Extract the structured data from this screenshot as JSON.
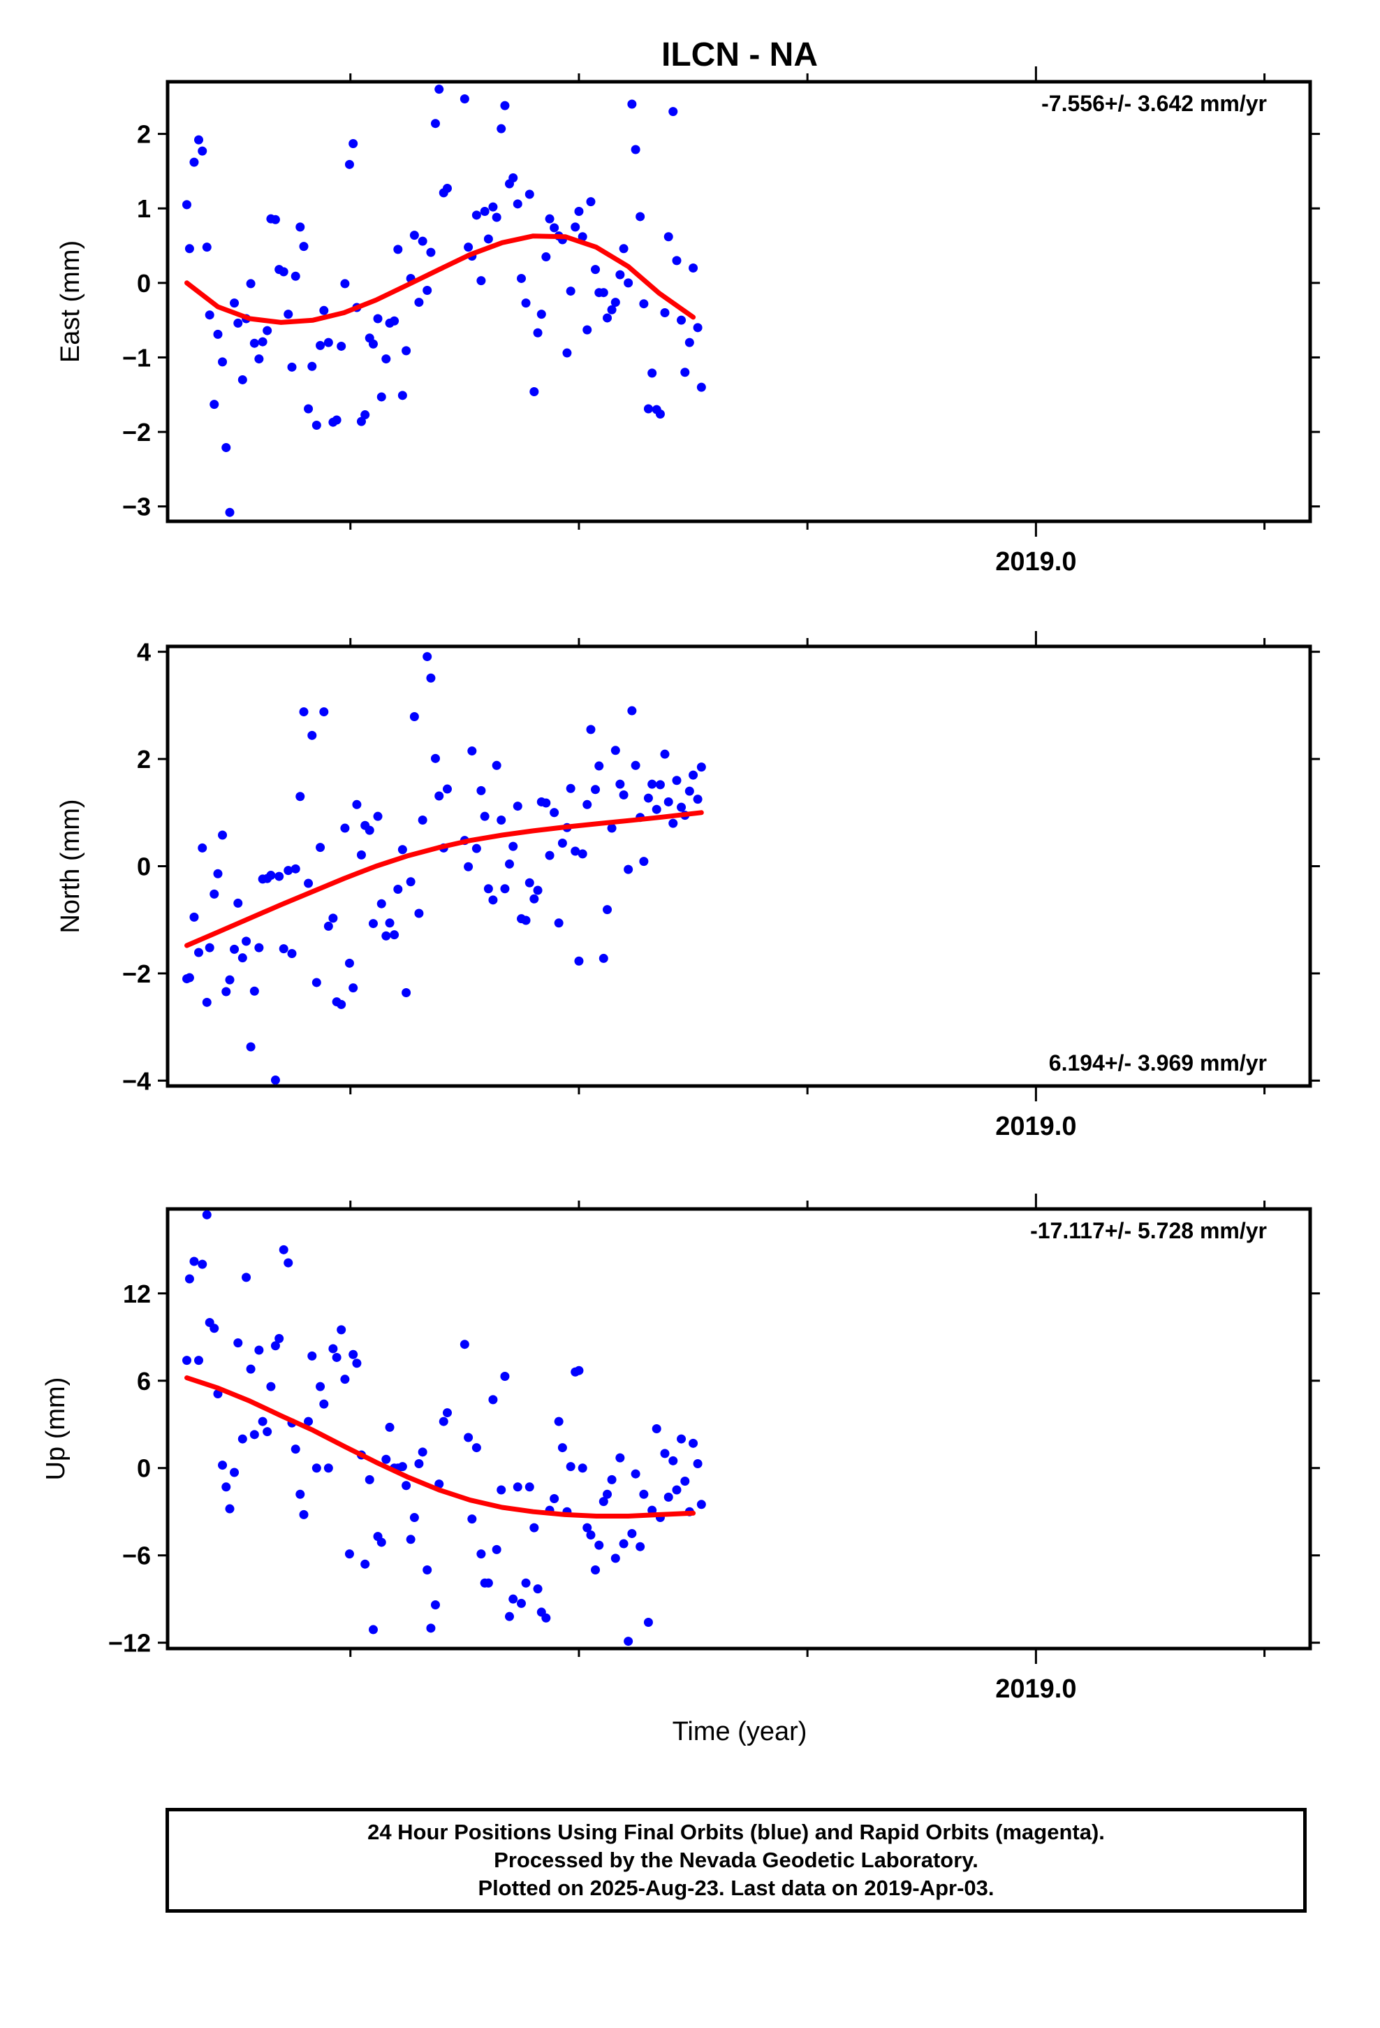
{
  "title": "ILCN - NA",
  "colors": {
    "points": "#0000ff",
    "fit": "#ff0000",
    "axis": "#000000"
  },
  "xaxis": {
    "tick_label": "2019.0",
    "label": "Time (year)",
    "range": [
      2018.05,
      2019.3
    ]
  },
  "footer": {
    "lines": [
      "24 Hour Positions Using Final Orbits (blue) and Rapid Orbits (magenta).",
      "Processed by the Nevada Geodetic Laboratory.",
      "Plotted on 2025-Aug-23. Last data on 2019-Apr-03."
    ]
  },
  "chart_data": [
    {
      "type": "scatter",
      "ylabel": "East (mm)",
      "ylim": [
        -3.2,
        2.7
      ],
      "yticks": [
        2,
        1,
        0,
        -1,
        -2,
        -3
      ],
      "yticklabels": [
        "2",
        "1",
        "0",
        "−1",
        "−2",
        "−3"
      ],
      "rate_label": "-7.556+/- 3.642 mm/yr",
      "rate_position": "top-right",
      "series": [
        {
          "x": [
            2018.071,
            2018.074,
            2018.079,
            2018.084,
            2018.088,
            2018.093,
            2018.096,
            2018.101,
            2018.105,
            2018.11,
            2018.114,
            2018.118,
            2018.123,
            2018.127,
            2018.132,
            2018.136,
            2018.141,
            2018.145,
            2018.15,
            2018.154,
            2018.159,
            2018.163,
            2018.168,
            2018.172,
            2018.177,
            2018.182,
            2018.186,
            2018.19,
            2018.195,
            2018.199,
            2018.204,
            2018.208,
            2018.213,
            2018.217,
            2018.221,
            2018.226,
            2018.231,
            2018.235,
            2018.24,
            2018.244,
            2018.249,
            2018.253,
            2018.257,
            2018.262,
            2018.266,
            2018.271,
            2018.275,
            2018.28,
            2018.284,
            2018.289,
            2018.293,
            2018.298,
            2018.302,
            2018.307,
            2018.311,
            2018.316,
            2018.32,
            2018.325,
            2018.329,
            2018.334,
            2018.338,
            2018.343,
            2018.347,
            2018.352,
            2018.356,
            2018.375,
            2018.379,
            2018.383,
            2018.388,
            2018.393,
            2018.397,
            2018.401,
            2018.406,
            2018.41,
            2018.415,
            2018.419,
            2018.424,
            2018.428,
            2018.433,
            2018.437,
            2018.442,
            2018.446,
            2018.451,
            2018.455,
            2018.459,
            2018.464,
            2018.468,
            2018.473,
            2018.478,
            2018.482,
            2018.487,
            2018.491,
            2018.496,
            2018.5,
            2018.504,
            2018.509,
            2018.513,
            2018.518,
            2018.522,
            2018.527,
            2018.531,
            2018.536,
            2018.54,
            2018.545,
            2018.549,
            2018.554,
            2018.558,
            2018.562,
            2018.567,
            2018.571,
            2018.576,
            2018.58,
            2018.585,
            2018.589,
            2018.594,
            2018.598,
            2018.603,
            2018.607,
            2018.612,
            2018.616,
            2018.621,
            2018.625,
            2018.63,
            2018.634
          ],
          "y": [
            1.05,
            0.46,
            1.62,
            1.92,
            1.77,
            0.48,
            -0.43,
            -1.63,
            -0.69,
            -1.06,
            -2.21,
            -3.08,
            -0.27,
            -0.54,
            -1.3,
            -0.48,
            -0.01,
            -0.81,
            -1.02,
            -0.79,
            -0.64,
            0.86,
            0.85,
            0.18,
            0.15,
            -0.42,
            -1.13,
            0.09,
            0.75,
            0.49,
            -1.69,
            -1.12,
            -1.91,
            -0.84,
            -0.37,
            -0.8,
            -1.87,
            -1.84,
            -0.85,
            -0.01,
            1.59,
            1.87,
            -0.33,
            -1.86,
            -1.77,
            -0.74,
            -0.82,
            -0.48,
            -1.53,
            -1.02,
            -0.54,
            -0.51,
            0.45,
            -1.51,
            -0.91,
            0.06,
            0.64,
            -0.26,
            0.56,
            -0.1,
            0.41,
            2.14,
            2.6,
            1.21,
            1.27,
            2.47,
            0.48,
            0.36,
            0.91,
            0.03,
            0.96,
            0.59,
            1.02,
            0.88,
            2.07,
            2.38,
            1.33,
            1.41,
            1.06,
            0.06,
            -0.27,
            1.19,
            -1.46,
            -0.67,
            -0.42,
            0.35,
            0.86,
            0.74,
            0.63,
            0.58,
            -0.94,
            -0.11,
            0.75,
            0.96,
            0.62,
            -0.63,
            1.09,
            0.18,
            -0.13,
            -0.13,
            -0.47,
            -0.36,
            -0.26,
            0.11,
            0.46,
            0.0,
            2.4,
            1.79,
            0.89,
            -0.28,
            -1.69,
            -1.21,
            -1.7,
            -1.76,
            -0.4,
            0.62,
            2.3,
            0.3,
            -0.5,
            -1.2,
            -0.8,
            0.2,
            -0.6,
            -1.4
          ],
          "n_points": 124
        },
        {
          "name": "fit",
          "x": [
            2018.071,
            2018.105,
            2018.14,
            2018.174,
            2018.209,
            2018.243,
            2018.278,
            2018.312,
            2018.347,
            2018.381,
            2018.416,
            2018.45,
            2018.485,
            2018.519,
            2018.554,
            2018.588,
            2018.625
          ],
          "y": [
            0.0,
            -0.32,
            -0.48,
            -0.53,
            -0.5,
            -0.4,
            -0.23,
            -0.03,
            0.18,
            0.38,
            0.54,
            0.63,
            0.62,
            0.48,
            0.22,
            -0.14,
            -0.46
          ]
        }
      ]
    },
    {
      "type": "scatter",
      "ylabel": "North (mm)",
      "ylim": [
        -4.1,
        4.1
      ],
      "yticks": [
        4,
        2,
        0,
        -2,
        -4
      ],
      "yticklabels": [
        "4",
        "2",
        "0",
        "−2",
        "−4"
      ],
      "rate_label": "6.194+/- 3.969 mm/yr",
      "rate_position": "bottom-right",
      "series": [
        {
          "x": [
            2018.071,
            2018.074,
            2018.079,
            2018.084,
            2018.088,
            2018.093,
            2018.096,
            2018.101,
            2018.105,
            2018.11,
            2018.114,
            2018.118,
            2018.123,
            2018.127,
            2018.132,
            2018.136,
            2018.141,
            2018.145,
            2018.15,
            2018.154,
            2018.159,
            2018.163,
            2018.168,
            2018.172,
            2018.177,
            2018.182,
            2018.186,
            2018.19,
            2018.195,
            2018.199,
            2018.204,
            2018.208,
            2018.213,
            2018.217,
            2018.221,
            2018.226,
            2018.231,
            2018.235,
            2018.24,
            2018.244,
            2018.249,
            2018.253,
            2018.257,
            2018.262,
            2018.266,
            2018.271,
            2018.275,
            2018.28,
            2018.284,
            2018.289,
            2018.293,
            2018.298,
            2018.302,
            2018.307,
            2018.311,
            2018.316,
            2018.32,
            2018.325,
            2018.329,
            2018.334,
            2018.338,
            2018.343,
            2018.347,
            2018.352,
            2018.356,
            2018.375,
            2018.379,
            2018.383,
            2018.388,
            2018.393,
            2018.397,
            2018.401,
            2018.406,
            2018.41,
            2018.415,
            2018.419,
            2018.424,
            2018.428,
            2018.433,
            2018.437,
            2018.442,
            2018.446,
            2018.451,
            2018.455,
            2018.459,
            2018.464,
            2018.468,
            2018.473,
            2018.478,
            2018.482,
            2018.487,
            2018.491,
            2018.496,
            2018.5,
            2018.504,
            2018.509,
            2018.513,
            2018.518,
            2018.522,
            2018.527,
            2018.531,
            2018.536,
            2018.54,
            2018.545,
            2018.549,
            2018.554,
            2018.558,
            2018.562,
            2018.567,
            2018.571,
            2018.576,
            2018.58,
            2018.585,
            2018.589,
            2018.594,
            2018.598,
            2018.603,
            2018.607,
            2018.612,
            2018.616,
            2018.621,
            2018.625,
            2018.63,
            2018.634
          ],
          "y": [
            -2.1,
            -2.08,
            -0.95,
            -1.61,
            0.34,
            -2.54,
            -1.52,
            -0.52,
            -0.14,
            0.58,
            -2.34,
            -2.12,
            -1.55,
            -0.69,
            -1.71,
            -1.4,
            -3.37,
            -2.33,
            -1.52,
            -0.24,
            -0.23,
            -0.17,
            -3.99,
            -0.19,
            -1.54,
            -0.08,
            -1.63,
            -0.05,
            1.3,
            2.88,
            -0.32,
            2.44,
            -2.17,
            0.35,
            2.88,
            -1.12,
            -0.97,
            -2.53,
            -2.58,
            0.71,
            -1.81,
            -2.27,
            1.15,
            0.21,
            0.76,
            0.67,
            -1.07,
            0.93,
            -0.7,
            -1.3,
            -1.06,
            -1.28,
            -0.43,
            0.31,
            -2.36,
            -0.29,
            2.79,
            -0.88,
            0.86,
            3.91,
            3.51,
            2.01,
            1.31,
            0.34,
            1.44,
            0.48,
            -0.01,
            2.15,
            0.33,
            1.41,
            0.93,
            -0.42,
            -0.63,
            1.88,
            0.86,
            -0.42,
            0.04,
            0.37,
            1.12,
            -0.98,
            -1.01,
            -0.31,
            -0.61,
            -0.45,
            1.2,
            1.18,
            0.2,
            1.0,
            -1.06,
            0.43,
            0.72,
            1.45,
            0.28,
            -1.77,
            0.23,
            1.15,
            2.55,
            1.43,
            1.87,
            -1.72,
            -0.81,
            0.71,
            2.16,
            1.53,
            1.33,
            -0.06,
            2.9,
            1.88,
            0.91,
            0.09,
            1.27,
            1.53,
            1.06,
            1.52,
            2.09,
            1.2,
            0.8,
            1.6,
            1.1,
            0.95,
            1.4,
            1.7,
            1.25,
            1.85
          ],
          "n_points": 124
        },
        {
          "name": "fit",
          "x": [
            2018.071,
            2018.105,
            2018.14,
            2018.174,
            2018.209,
            2018.243,
            2018.278,
            2018.312,
            2018.347,
            2018.381,
            2018.416,
            2018.45,
            2018.485,
            2018.519,
            2018.554,
            2018.588,
            2018.634
          ],
          "y": [
            -1.48,
            -1.23,
            -0.97,
            -0.72,
            -0.47,
            -0.23,
            0.0,
            0.19,
            0.35,
            0.48,
            0.58,
            0.66,
            0.73,
            0.79,
            0.85,
            0.91,
            1.0
          ]
        }
      ]
    },
    {
      "type": "scatter",
      "ylabel": "Up (mm)",
      "ylim": [
        -12.4,
        17.8
      ],
      "yticks": [
        12,
        6,
        0,
        -6,
        -12
      ],
      "yticklabels": [
        "12",
        "6",
        "0",
        "−6",
        "−12"
      ],
      "rate_label": "-17.117+/- 5.728 mm/yr",
      "rate_position": "top-right",
      "series": [
        {
          "x": [
            2018.071,
            2018.074,
            2018.079,
            2018.084,
            2018.088,
            2018.093,
            2018.096,
            2018.101,
            2018.105,
            2018.11,
            2018.114,
            2018.118,
            2018.123,
            2018.127,
            2018.132,
            2018.136,
            2018.141,
            2018.145,
            2018.15,
            2018.154,
            2018.159,
            2018.163,
            2018.168,
            2018.172,
            2018.177,
            2018.182,
            2018.186,
            2018.19,
            2018.195,
            2018.199,
            2018.204,
            2018.208,
            2018.213,
            2018.217,
            2018.221,
            2018.226,
            2018.231,
            2018.235,
            2018.24,
            2018.244,
            2018.249,
            2018.253,
            2018.257,
            2018.262,
            2018.266,
            2018.271,
            2018.275,
            2018.28,
            2018.284,
            2018.289,
            2018.293,
            2018.298,
            2018.302,
            2018.307,
            2018.311,
            2018.316,
            2018.32,
            2018.325,
            2018.329,
            2018.334,
            2018.338,
            2018.343,
            2018.347,
            2018.352,
            2018.356,
            2018.375,
            2018.379,
            2018.383,
            2018.388,
            2018.393,
            2018.397,
            2018.401,
            2018.406,
            2018.41,
            2018.415,
            2018.419,
            2018.424,
            2018.428,
            2018.433,
            2018.437,
            2018.442,
            2018.446,
            2018.451,
            2018.455,
            2018.459,
            2018.464,
            2018.468,
            2018.473,
            2018.478,
            2018.482,
            2018.487,
            2018.491,
            2018.496,
            2018.5,
            2018.504,
            2018.509,
            2018.513,
            2018.518,
            2018.522,
            2018.527,
            2018.531,
            2018.536,
            2018.54,
            2018.545,
            2018.549,
            2018.554,
            2018.558,
            2018.562,
            2018.567,
            2018.571,
            2018.576,
            2018.58,
            2018.585,
            2018.589,
            2018.594,
            2018.598,
            2018.603,
            2018.607,
            2018.612,
            2018.616,
            2018.621,
            2018.625,
            2018.63,
            2018.634
          ],
          "y": [
            7.4,
            13.0,
            14.2,
            7.4,
            14.0,
            17.4,
            10.0,
            9.6,
            5.1,
            0.2,
            -1.3,
            -2.8,
            -0.3,
            8.6,
            2.0,
            13.1,
            6.8,
            2.3,
            8.1,
            3.2,
            2.5,
            5.6,
            8.4,
            8.9,
            15.0,
            14.1,
            3.1,
            1.3,
            -1.8,
            -3.2,
            3.2,
            7.7,
            0.0,
            5.6,
            4.4,
            0.0,
            8.2,
            7.6,
            9.5,
            6.1,
            -5.9,
            7.8,
            7.2,
            0.9,
            -6.6,
            -0.8,
            -11.1,
            -4.7,
            -5.1,
            0.6,
            2.8,
            0.0,
            0.0,
            0.1,
            -1.2,
            -4.9,
            -3.4,
            0.3,
            1.1,
            -7.0,
            -11.0,
            -9.4,
            -1.1,
            3.2,
            3.8,
            8.5,
            2.1,
            -3.5,
            1.4,
            -5.9,
            -7.9,
            -7.9,
            4.7,
            -5.6,
            -1.5,
            6.3,
            -10.2,
            -9.0,
            -1.3,
            -9.3,
            -7.9,
            -1.3,
            -4.1,
            -8.3,
            -9.9,
            -10.3,
            -2.9,
            -2.1,
            3.2,
            1.4,
            -3.0,
            0.1,
            6.6,
            6.7,
            0.0,
            -4.1,
            -4.6,
            -7.0,
            -5.3,
            -2.3,
            -1.8,
            -0.8,
            -6.2,
            0.7,
            -5.2,
            -11.9,
            -4.5,
            -0.4,
            -5.4,
            -1.8,
            -10.6,
            -2.9,
            2.7,
            -3.4,
            1.0,
            -2.0,
            0.5,
            -1.5,
            2.0,
            -0.9,
            -3.0,
            1.7,
            0.3,
            -2.5
          ],
          "n_points": 124
        },
        {
          "name": "fit",
          "x": [
            2018.071,
            2018.105,
            2018.14,
            2018.174,
            2018.209,
            2018.243,
            2018.278,
            2018.312,
            2018.347,
            2018.381,
            2018.416,
            2018.45,
            2018.485,
            2018.519,
            2018.554,
            2018.588,
            2018.625
          ],
          "y": [
            6.2,
            5.5,
            4.6,
            3.6,
            2.6,
            1.5,
            0.4,
            -0.6,
            -1.5,
            -2.2,
            -2.7,
            -3.0,
            -3.2,
            -3.3,
            -3.3,
            -3.2,
            -3.1
          ]
        }
      ]
    }
  ]
}
